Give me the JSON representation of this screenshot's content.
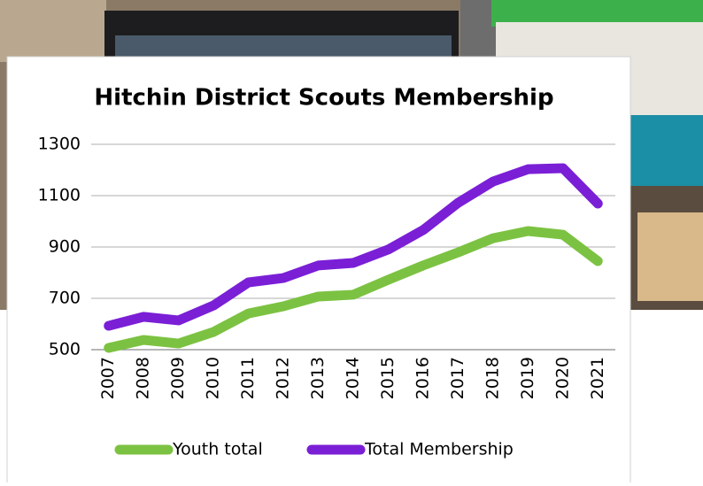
{
  "chart_data": {
    "type": "line",
    "title": "Hitchin District Scouts Membership",
    "categories": [
      "2007",
      "2008",
      "2009",
      "2010",
      "2011",
      "2012",
      "2013",
      "2014",
      "2015",
      "2016",
      "2017",
      "2018",
      "2019",
      "2020",
      "2021"
    ],
    "series": [
      {
        "name": "Youth total",
        "color": "#7cc242",
        "values": [
          507,
          538,
          524,
          569,
          641,
          669,
          707,
          714,
          772,
          828,
          879,
          934,
          962,
          948,
          845
        ]
      },
      {
        "name": "Total Membership",
        "color": "#7a1fd6",
        "values": [
          593,
          628,
          614,
          672,
          762,
          779,
          828,
          838,
          890,
          966,
          1072,
          1155,
          1203,
          1207,
          1069
        ]
      }
    ],
    "ylim": [
      500,
      1300
    ],
    "yticks": [
      500,
      700,
      900,
      1100,
      1300
    ],
    "grid": true,
    "legend": "bottom"
  }
}
